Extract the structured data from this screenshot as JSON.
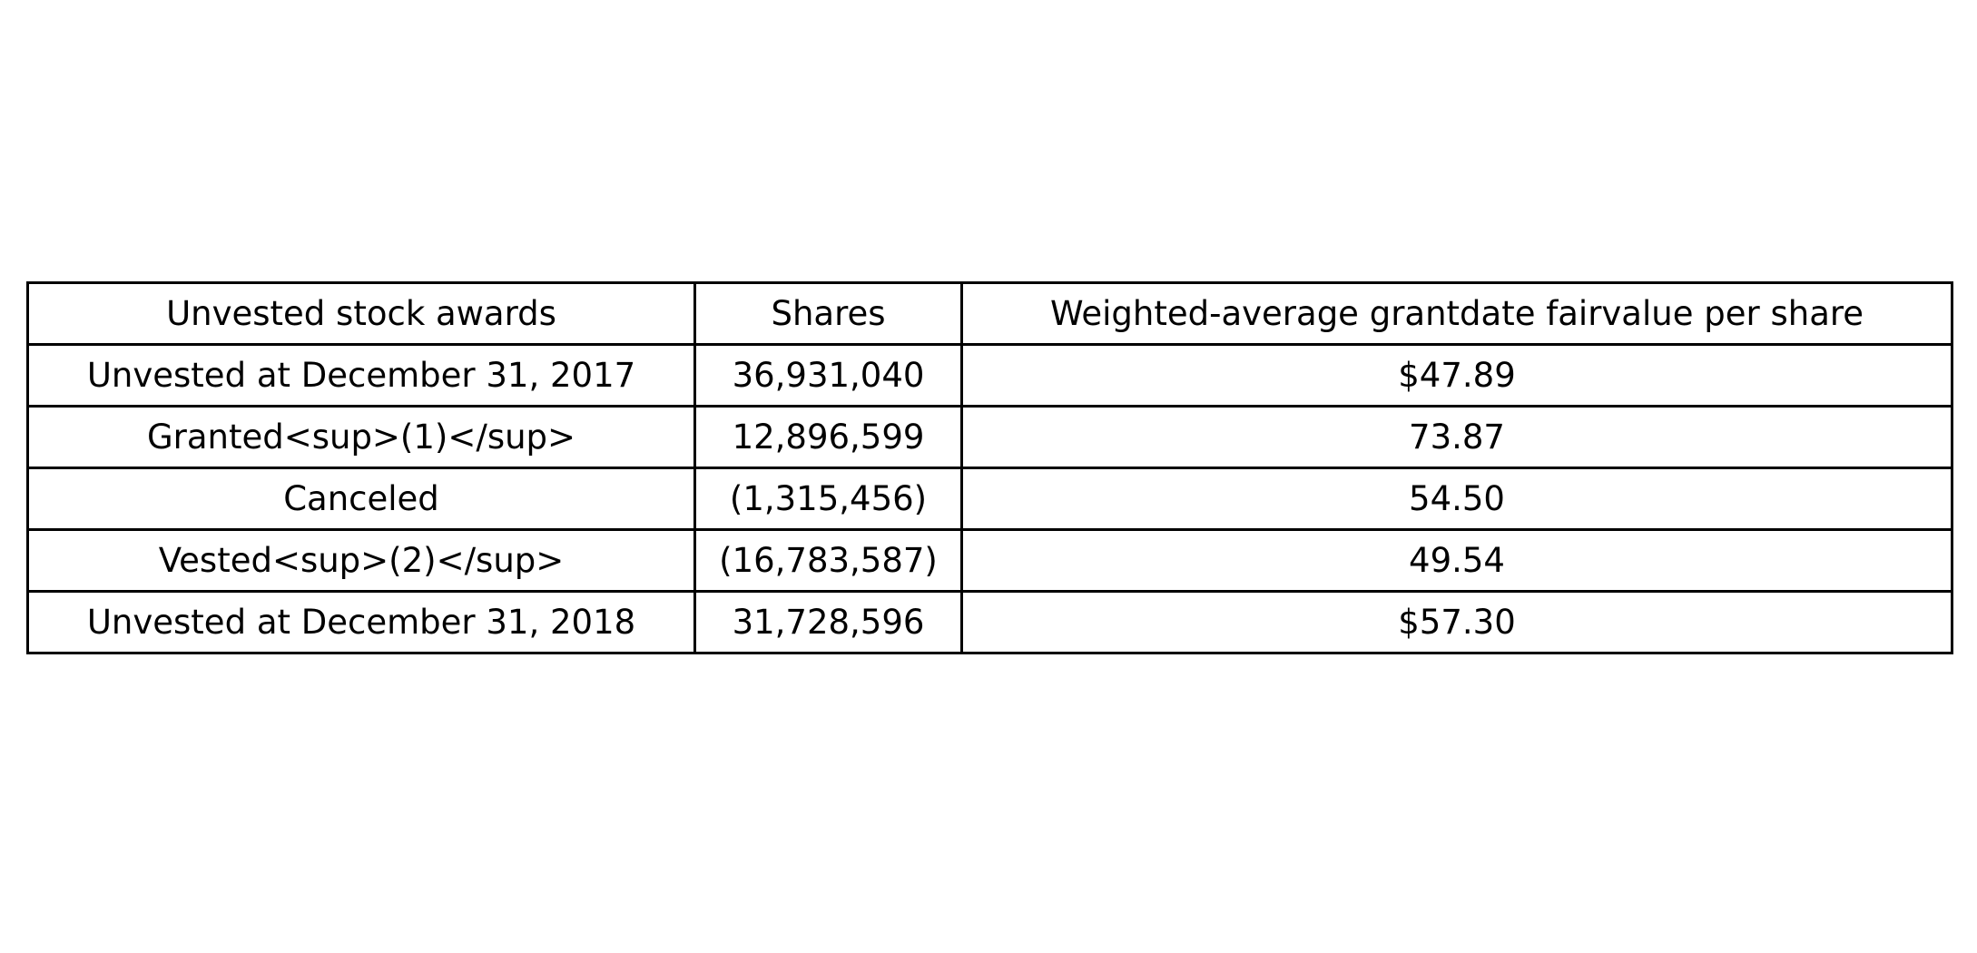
{
  "chart_data": {
    "type": "table",
    "columns": [
      "Unvested stock awards",
      "Shares",
      "Weighted-average grantdate fairvalue per share"
    ],
    "rows": [
      [
        "Unvested at December 31, 2017",
        "36,931,040",
        "$47.89"
      ],
      [
        "Granted<sup>(1)</sup>",
        "12,896,599",
        "73.87"
      ],
      [
        "Canceled",
        "(1,315,456)",
        "54.50"
      ],
      [
        "Vested<sup>(2)</sup>",
        "(16,783,587)",
        "49.54"
      ],
      [
        "Unvested at December 31, 2018",
        "31,728,596",
        "$57.30"
      ]
    ]
  }
}
